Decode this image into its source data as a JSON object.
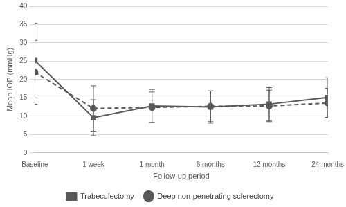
{
  "chart_data": {
    "type": "line",
    "x_label": "Follow-up period",
    "y_label": "Mean IOP (mmHg)",
    "categories": [
      "Baseline",
      "1 week",
      "1 month",
      "6 months",
      "12 months",
      "24 months"
    ],
    "series": [
      {
        "name": "Trabeculectomy",
        "color": "#595959",
        "marker": "square",
        "line_style": "solid",
        "values": [
          25.2,
          9.6,
          12.8,
          12.5,
          13.3,
          15.1
        ],
        "errors": [
          10.2,
          4.9,
          4.5,
          4.4,
          4.5,
          5.4
        ]
      },
      {
        "name": "Deep non-penetrating sclerectomy",
        "color": "#595959",
        "marker": "circle",
        "line_style": "dashed",
        "values": [
          22.0,
          12.1,
          12.4,
          12.7,
          12.8,
          13.6
        ],
        "errors": [
          8.7,
          6.2,
          4.2,
          4.2,
          4.3,
          4.0
        ]
      }
    ],
    "ylim": [
      0,
      40
    ],
    "yticks": [
      0,
      5,
      10,
      15,
      20,
      25,
      30,
      35,
      40
    ],
    "grid": true,
    "legend": "bottom"
  }
}
